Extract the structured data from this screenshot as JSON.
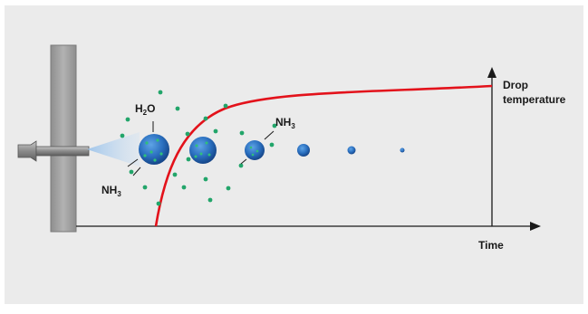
{
  "labels": {
    "h2o": {
      "main": "H",
      "sub": "2",
      "tail": "O"
    },
    "nh3_left": {
      "main": "NH",
      "sub": "3"
    },
    "nh3_right": {
      "main": "NH",
      "sub": "3"
    },
    "drop_temperature_line1": "Drop",
    "drop_temperature_line2": "temperature",
    "time_axis": "Time"
  },
  "colors": {
    "panel_background": "#ebebeb",
    "curve": "#e3121b",
    "droplet": "#2a6fbf",
    "molecule": "#22a56a",
    "axis": "#1a1a1a",
    "injector": "#9b9b9b"
  },
  "icons": [
    "injector-nozzle-icon",
    "spray-cone-icon",
    "droplet-icon",
    "molecule-dot-icon"
  ]
}
